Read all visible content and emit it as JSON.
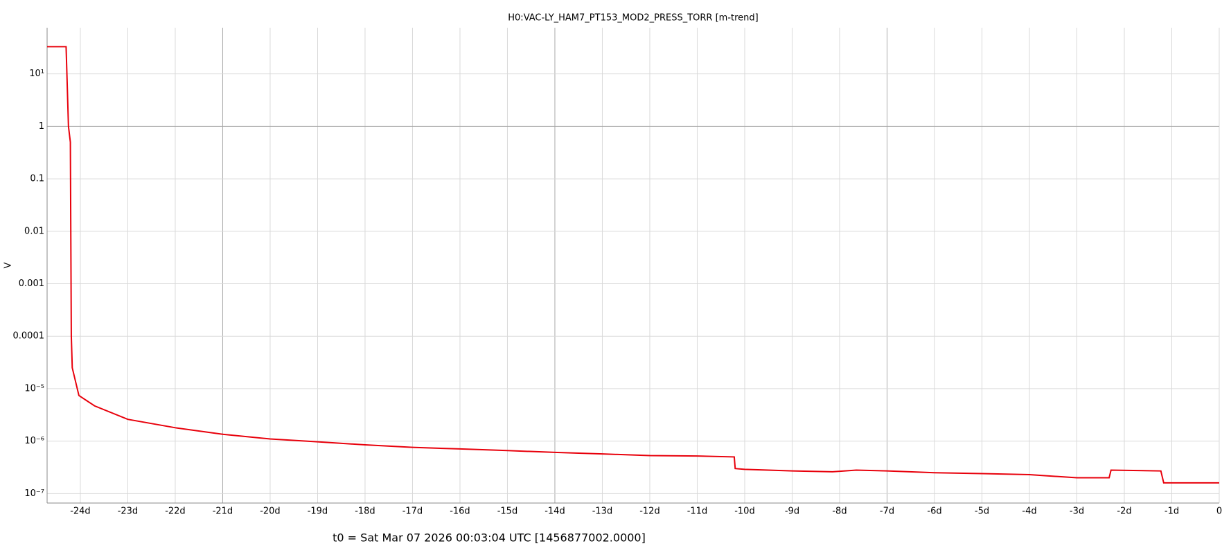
{
  "chart_data": {
    "type": "line",
    "title": "H0:VAC-LY_HAM7_PT153_MOD2_PRESS_TORR [m-trend]",
    "ylabel": "V",
    "footer": "t0 = Sat Mar 07 2026 00:03:04 UTC [1456877002.0000]",
    "yscale": "log",
    "grid": true,
    "color": "#e8000b",
    "xlim": [
      -24.7,
      0
    ],
    "ylim": [
      6.6e-08,
      76
    ],
    "xticks": [
      {
        "value": -24,
        "label": "-24d"
      },
      {
        "value": -23,
        "label": "-23d"
      },
      {
        "value": -22,
        "label": "-22d"
      },
      {
        "value": -21,
        "label": "-21d"
      },
      {
        "value": -20,
        "label": "-20d"
      },
      {
        "value": -19,
        "label": "-19d"
      },
      {
        "value": -18,
        "label": "-18d"
      },
      {
        "value": -17,
        "label": "-17d"
      },
      {
        "value": -16,
        "label": "-16d"
      },
      {
        "value": -15,
        "label": "-15d"
      },
      {
        "value": -14,
        "label": "-14d"
      },
      {
        "value": -13,
        "label": "-13d"
      },
      {
        "value": -12,
        "label": "-12d"
      },
      {
        "value": -11,
        "label": "-11d"
      },
      {
        "value": -10,
        "label": "-10d"
      },
      {
        "value": -9,
        "label": "-9d"
      },
      {
        "value": -8,
        "label": "-8d"
      },
      {
        "value": -7,
        "label": "-7d"
      },
      {
        "value": -6,
        "label": "-6d"
      },
      {
        "value": -5,
        "label": "-5d"
      },
      {
        "value": -4,
        "label": "-4d"
      },
      {
        "value": -3,
        "label": "-3d"
      },
      {
        "value": -2,
        "label": "-2d"
      },
      {
        "value": -1,
        "label": "-1d"
      },
      0
    ],
    "major_xticks": [
      -21,
      -14,
      -7
    ],
    "yticks": [
      {
        "value": 10,
        "label": "10¹"
      },
      1,
      0.1,
      0.01,
      0.001,
      0.0001,
      {
        "value": 1e-05,
        "label": "10⁻⁵"
      },
      {
        "value": 1e-06,
        "label": "10⁻⁶"
      },
      {
        "value": 1e-07,
        "label": "10⁻⁷"
      }
    ],
    "major_yticks": [
      1
    ],
    "x": [
      -24.7,
      -24.3,
      -24.25,
      -24.21,
      -24.19,
      -24.17,
      -24.03,
      -23.7,
      -23,
      -22,
      -21,
      -20,
      -19,
      -18,
      -17,
      -16,
      -15,
      -14,
      -13,
      -12,
      -11,
      -10.22,
      -10.2,
      -10,
      -9,
      -8.15,
      -7.65,
      -7,
      -6,
      -5,
      -4,
      -3,
      -2.32,
      -2.28,
      -1.23,
      -1.17,
      0
    ],
    "values": [
      33,
      33,
      1,
      0.5,
      0.0001,
      2.5e-05,
      7.4e-06,
      4.7e-06,
      2.6e-06,
      1.8e-06,
      1.35e-06,
      1.1e-06,
      9.7e-07,
      8.5e-07,
      7.6e-07,
      7.1e-07,
      6.6e-07,
      6.1e-07,
      5.7e-07,
      5.3e-07,
      5.2e-07,
      5e-07,
      3e-07,
      2.9e-07,
      2.7e-07,
      2.6e-07,
      2.8e-07,
      2.7e-07,
      2.5e-07,
      2.4e-07,
      2.3e-07,
      2e-07,
      2e-07,
      2.8e-07,
      2.7e-07,
      1.6e-07,
      1.6e-07
    ]
  }
}
